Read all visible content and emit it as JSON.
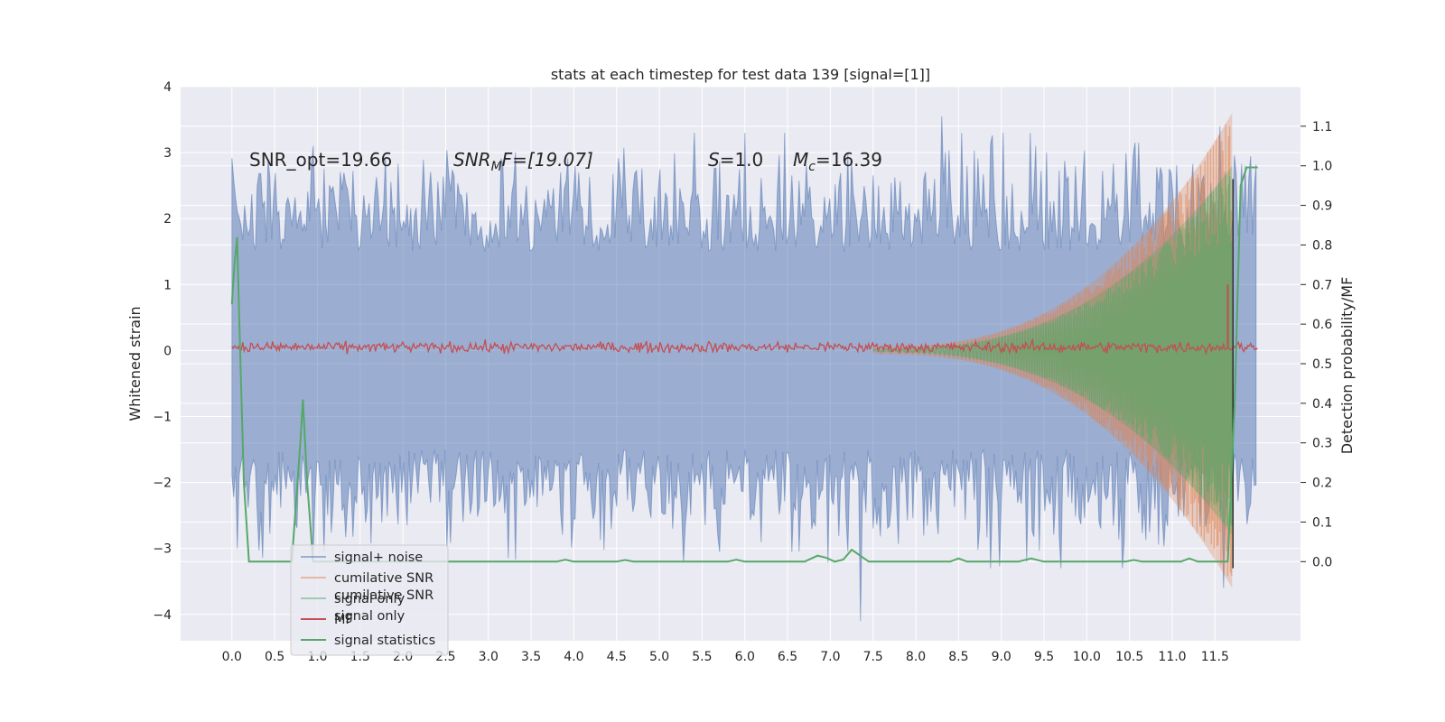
{
  "chart_data": {
    "type": "line",
    "title": "stats at each timestep for test data 139 [signal=[1]]",
    "xlabel": "",
    "ylabel": "Whitened strain",
    "ylabel_right": "Detection probability/MF",
    "xlim": [
      -0.6,
      12.5
    ],
    "ylim": [
      -4.4,
      4.0
    ],
    "ylim_right": [
      -0.2,
      1.2
    ],
    "xticks": [
      "0.0",
      "0.5",
      "1.0",
      "1.5",
      "2.0",
      "2.5",
      "3.0",
      "3.5",
      "4.0",
      "4.5",
      "5.0",
      "5.5",
      "6.0",
      "6.5",
      "7.0",
      "7.5",
      "8.0",
      "8.5",
      "9.0",
      "9.5",
      "10.0",
      "10.5",
      "11.0",
      "11.5"
    ],
    "yticks": [
      "4",
      "3",
      "2",
      "1",
      "0",
      "−1",
      "−2",
      "−3",
      "−4"
    ],
    "yticks_right": [
      "1.1",
      "1.0",
      "0.9",
      "0.8",
      "0.7",
      "0.6",
      "0.5",
      "0.4",
      "0.3",
      "0.2",
      "0.1",
      "0.0"
    ],
    "grid": true,
    "legend_position": "lower-left",
    "annotations": {
      "snr_opt": "SNR_opt=19.66",
      "snr_mf_main": "SNR",
      "snr_mf_sub": "M",
      "snr_mf_rest": "F=[19.07]",
      "s_main": "S",
      "s_rest": "=1.0",
      "mc_main": "M",
      "mc_sub": "c",
      "mc_rest": "=16.39"
    },
    "legend": [
      {
        "name": "signal+ noise",
        "color": "#4c72b0"
      },
      {
        "name": "cumilative SNR",
        "color": "#dd8452"
      },
      {
        "name": "signal only",
        "color": "#55a868"
      },
      {
        "name": "MF",
        "color": "#c44e52"
      },
      {
        "name": "signal statistics",
        "color": "#55a868"
      }
    ],
    "ghost_legend": [
      "cumilative SNR",
      "signal only"
    ],
    "series": [
      {
        "name": "signal+ noise",
        "axis": "left",
        "x_range": [
          0.0,
          12.0
        ],
        "amplitude": 1.5,
        "peak": 3.55,
        "trough": -4.1
      },
      {
        "name": "cumilative SNR",
        "axis": "left",
        "x_range": [
          7.5,
          11.7
        ],
        "start_amplitude": 0.05,
        "end_amplitude": 3.6
      },
      {
        "name": "signal only",
        "axis": "left",
        "x_range": [
          7.5,
          11.7
        ],
        "start_amplitude": 0.02,
        "end_amplitude": 2.8
      },
      {
        "name": "MF",
        "axis": "left",
        "x_range": [
          0.0,
          12.0
        ],
        "level": 0.05,
        "spike_x": 11.65,
        "spike_value": 1.0
      },
      {
        "name": "signal statistics",
        "axis": "right",
        "x": [
          0.0,
          0.03,
          0.06,
          0.1,
          0.14,
          0.2,
          0.5,
          0.7,
          0.8,
          0.83,
          0.88,
          0.95,
          3.8,
          3.9,
          4.0,
          4.5,
          4.6,
          4.7,
          5.8,
          5.9,
          6.0,
          6.7,
          6.85,
          6.95,
          7.05,
          7.15,
          7.25,
          7.35,
          7.45,
          7.6,
          8.4,
          8.5,
          8.6,
          9.2,
          9.35,
          9.5,
          10.45,
          10.55,
          10.65,
          11.1,
          11.2,
          11.3,
          11.65,
          11.73,
          11.8,
          11.87,
          11.95,
          12.0
        ],
        "y": [
          0.65,
          0.75,
          0.82,
          0.5,
          0.2,
          0.0,
          0.0,
          0.0,
          0.3,
          0.41,
          0.2,
          0.0,
          0.0,
          0.005,
          0.0,
          0.0,
          0.004,
          0.0,
          0.0,
          0.005,
          0.0,
          0.0,
          0.015,
          0.01,
          0.0,
          0.005,
          0.03,
          0.015,
          0.0,
          0.0,
          0.0,
          0.008,
          0.0,
          0.0,
          0.008,
          0.0,
          0.0,
          0.004,
          0.0,
          0.0,
          0.008,
          0.0,
          0.0,
          0.4,
          0.95,
          0.996,
          0.996,
          0.996
        ]
      }
    ]
  }
}
